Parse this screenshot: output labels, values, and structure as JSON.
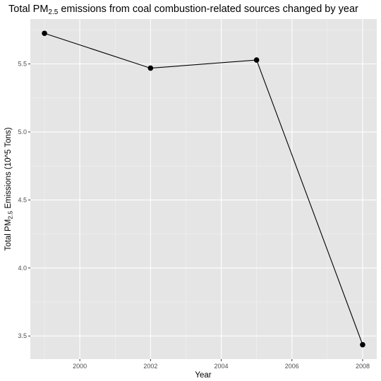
{
  "chart_data": {
    "type": "line",
    "title": {
      "prefix": "Total PM",
      "subscript": "2.5",
      "suffix": " emissions from coal combustion-related sources changed by year"
    },
    "xlabel": "Year",
    "ylabel": {
      "prefix": "Total PM",
      "subscript": "2.5",
      "suffix": " Emissions (10^5 Tons)"
    },
    "x": [
      1999,
      2002,
      2005,
      2008
    ],
    "y": [
      5.725,
      5.469,
      5.529,
      3.436
    ],
    "xlim": [
      1998.6,
      2008.4
    ],
    "ylim": [
      3.33,
      5.83
    ],
    "xticks": [
      2000,
      2002,
      2004,
      2006,
      2008
    ],
    "yticks": [
      3.5,
      4.0,
      4.5,
      5.0,
      5.5
    ],
    "ytick_labels": [
      "3.5",
      "4.0",
      "4.5",
      "5.0",
      "5.5"
    ],
    "grid": true,
    "colors": {
      "panel_background": "#e5e5e5",
      "grid_major": "#ffffff",
      "grid_minor": "#f2f2f2",
      "line": "#000000",
      "point": "#000000"
    }
  }
}
